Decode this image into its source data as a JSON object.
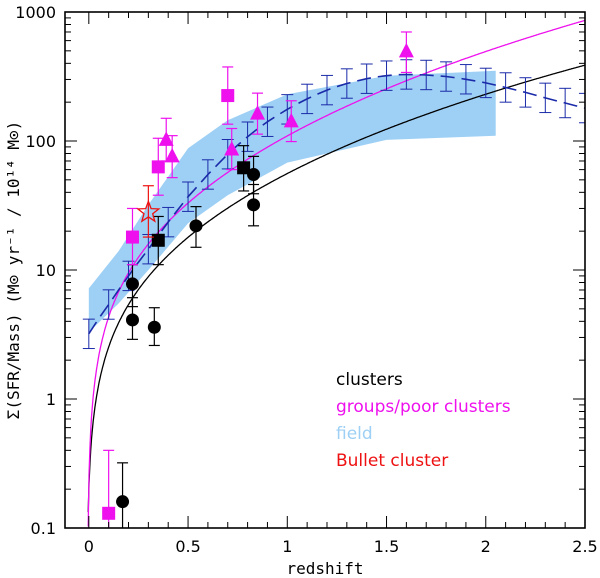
{
  "chart_data": {
    "type": "scatter",
    "title": "",
    "xlabel": "redshift",
    "ylabel": "Σ(SFR/Mass)  (M⊙ yr⁻¹ / 10¹⁴ M⊙)",
    "xlim": [
      -0.12,
      2.5
    ],
    "ylim": [
      0.1,
      1000
    ],
    "yscale": "log",
    "x_ticks": [
      "0",
      "0.5",
      "1",
      "1.5",
      "2",
      "2.5"
    ],
    "y_ticks": [
      "0.1",
      "1",
      "10",
      "100",
      "1000"
    ],
    "legend": [
      {
        "label": "clusters",
        "color": "#000000"
      },
      {
        "label": "groups/poor clusters",
        "color": "#ee11ee"
      },
      {
        "label": "field",
        "color": "#9ed0f5"
      },
      {
        "label": "Bullet cluster",
        "color": "#ee1111"
      }
    ],
    "series": [
      {
        "name": "clusters (circles)",
        "color": "#000000",
        "marker": "circle",
        "points": [
          {
            "x": 0.17,
            "y": 0.16,
            "lo": 0.1,
            "hi": 0.32
          },
          {
            "x": 0.22,
            "y": 7.8,
            "lo": 5.2,
            "hi": 11
          },
          {
            "x": 0.22,
            "y": 4.1,
            "lo": 2.9,
            "hi": 6.1
          },
          {
            "x": 0.33,
            "y": 3.6,
            "lo": 2.6,
            "hi": 5.1
          },
          {
            "x": 0.54,
            "y": 22,
            "lo": 15,
            "hi": 31
          },
          {
            "x": 0.83,
            "y": 55,
            "lo": 39,
            "hi": 76
          },
          {
            "x": 0.83,
            "y": 32,
            "lo": 22,
            "hi": 46
          }
        ]
      },
      {
        "name": "clusters (squares)",
        "color": "#000000",
        "marker": "square",
        "points": [
          {
            "x": 0.35,
            "y": 17,
            "lo": 11,
            "hi": 26
          },
          {
            "x": 0.78,
            "y": 62,
            "lo": 41,
            "hi": 92
          }
        ]
      },
      {
        "name": "groups/poor clusters (squares)",
        "color": "#ee11ee",
        "marker": "square",
        "points": [
          {
            "x": 0.1,
            "y": 0.13,
            "lo": 0.1,
            "hi": 0.4
          },
          {
            "x": 0.22,
            "y": 18,
            "lo": 11,
            "hi": 30
          },
          {
            "x": 0.35,
            "y": 63,
            "lo": 38,
            "hi": 105
          },
          {
            "x": 0.7,
            "y": 225,
            "lo": 135,
            "hi": 375
          }
        ]
      },
      {
        "name": "groups/poor clusters (triangles)",
        "color": "#ee11ee",
        "marker": "triangle",
        "points": [
          {
            "x": 0.39,
            "y": 102,
            "lo": 70,
            "hi": 150
          },
          {
            "x": 0.42,
            "y": 76,
            "lo": 52,
            "hi": 110
          },
          {
            "x": 0.72,
            "y": 86,
            "lo": 60,
            "hi": 125
          },
          {
            "x": 0.85,
            "y": 163,
            "lo": 113,
            "hi": 235
          },
          {
            "x": 1.02,
            "y": 142,
            "lo": 99,
            "hi": 205
          },
          {
            "x": 1.6,
            "y": 495,
            "lo": 340,
            "hi": 700
          }
        ]
      },
      {
        "name": "Bullet cluster",
        "color": "#ee1111",
        "marker": "star",
        "points": [
          {
            "x": 0.3,
            "y": 28,
            "lo": 18,
            "hi": 45
          }
        ]
      }
    ],
    "field_band": {
      "color": "#9ed0f5",
      "x": [
        0.0,
        0.15,
        0.3,
        0.5,
        0.7,
        1.0,
        1.5,
        2.05
      ],
      "lower": [
        3.3,
        5.5,
        10,
        23,
        38,
        68,
        102,
        110
      ],
      "upper": [
        7.2,
        14,
        32,
        88,
        145,
        230,
        320,
        350
      ]
    },
    "field_curve": {
      "color": "#1a2aa8",
      "x": [
        0.0,
        0.05,
        0.1,
        0.15,
        0.2,
        0.25,
        0.3,
        0.35,
        0.4,
        0.45,
        0.5,
        0.55,
        0.6,
        0.65,
        0.7,
        0.75,
        0.8,
        0.85,
        0.9,
        0.95,
        1.0,
        1.05,
        1.1,
        1.15,
        1.2,
        1.25,
        1.3,
        1.35,
        1.4,
        1.45,
        1.5,
        1.55,
        1.6,
        1.65,
        1.7,
        1.75,
        1.8,
        1.85,
        1.9,
        1.95,
        2.0,
        2.05,
        2.1,
        2.15,
        2.2,
        2.25,
        2.3,
        2.35,
        2.4,
        2.45,
        2.5
      ],
      "y": [
        3.2,
        4.2,
        5.4,
        7.0,
        9.0,
        11.5,
        14.5,
        18.5,
        23.5,
        29.5,
        37,
        45,
        55,
        66,
        79,
        93,
        108,
        124,
        141,
        158,
        176,
        194,
        212,
        230,
        248,
        264,
        279,
        292,
        304,
        314,
        321,
        326,
        328,
        327,
        325,
        321,
        316,
        309,
        301,
        292,
        282,
        271,
        260,
        249,
        238,
        227,
        216,
        206,
        197,
        188,
        180
      ],
      "err_x": [
        0.0,
        0.1,
        0.2,
        0.3,
        0.4,
        0.5,
        0.6,
        0.7,
        0.8,
        0.9,
        1.0,
        1.1,
        1.2,
        1.3,
        1.4,
        1.5,
        1.6,
        1.7,
        1.8,
        1.9,
        2.0,
        2.1,
        2.2,
        2.3,
        2.4,
        2.5
      ]
    },
    "model_curves": [
      {
        "name": "clusters model",
        "color": "#000000",
        "form": "A*(1+z)^n - B",
        "A": 6.3,
        "n": 3.3,
        "B": 6.1
      },
      {
        "name": "groups model",
        "color": "#ee11ee",
        "form": "A*(1+z)^n - B",
        "A": 10.2,
        "n": 3.55,
        "B": 9.98
      }
    ]
  }
}
